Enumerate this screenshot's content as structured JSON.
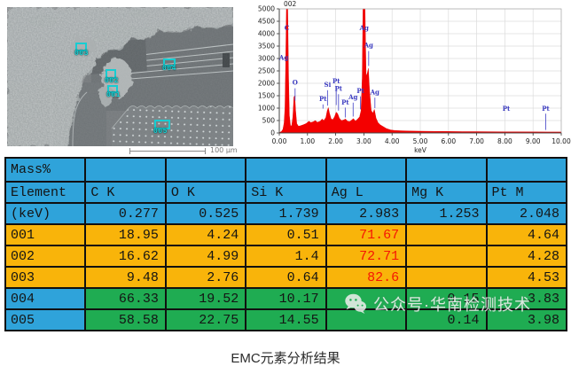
{
  "sem": {
    "scale_bar_label": "100 μm",
    "markers": [
      {
        "label": "003"
      },
      {
        "label": "004"
      },
      {
        "label": "002"
      },
      {
        "label": "001"
      },
      {
        "label": "005"
      }
    ]
  },
  "chart_data": {
    "type": "area",
    "title": "002",
    "xlabel": "keV",
    "ylabel": "",
    "xlim": [
      0,
      10
    ],
    "ylim": [
      0,
      5000
    ],
    "grid": true,
    "series_color": "#f40000",
    "label_color": "#3a3ac0",
    "x_ticks": [
      "0.00",
      "1.00",
      "2.00",
      "3.00",
      "4.00",
      "5.00",
      "6.00",
      "7.00",
      "8.00",
      "9.00",
      "10.00"
    ],
    "y_ticks": [
      0,
      500,
      1000,
      1500,
      2000,
      2500,
      3000,
      3500,
      4000,
      4500,
      5000
    ],
    "points": [
      [
        0,
        15
      ],
      [
        0.08,
        60
      ],
      [
        0.13,
        150
      ],
      [
        0.17,
        400
      ],
      [
        0.2,
        1000
      ],
      [
        0.23,
        3000
      ],
      [
        0.25,
        5300
      ],
      [
        0.3,
        5300
      ],
      [
        0.33,
        2200
      ],
      [
        0.36,
        700
      ],
      [
        0.4,
        280
      ],
      [
        0.44,
        300
      ],
      [
        0.48,
        650
      ],
      [
        0.52,
        1450
      ],
      [
        0.55,
        1500
      ],
      [
        0.58,
        900
      ],
      [
        0.62,
        380
      ],
      [
        0.68,
        270
      ],
      [
        0.75,
        290
      ],
      [
        0.85,
        330
      ],
      [
        0.95,
        380
      ],
      [
        1.05,
        470
      ],
      [
        1.12,
        420
      ],
      [
        1.2,
        450
      ],
      [
        1.28,
        500
      ],
      [
        1.35,
        430
      ],
      [
        1.45,
        470
      ],
      [
        1.52,
        560
      ],
      [
        1.58,
        500
      ],
      [
        1.65,
        620
      ],
      [
        1.7,
        900
      ],
      [
        1.74,
        1020
      ],
      [
        1.78,
        800
      ],
      [
        1.84,
        560
      ],
      [
        1.9,
        540
      ],
      [
        1.96,
        650
      ],
      [
        2.02,
        840
      ],
      [
        2.07,
        780
      ],
      [
        2.13,
        600
      ],
      [
        2.2,
        500
      ],
      [
        2.28,
        520
      ],
      [
        2.35,
        560
      ],
      [
        2.42,
        470
      ],
      [
        2.5,
        460
      ],
      [
        2.57,
        520
      ],
      [
        2.63,
        580
      ],
      [
        2.7,
        480
      ],
      [
        2.78,
        560
      ],
      [
        2.85,
        650
      ],
      [
        2.9,
        900
      ],
      [
        2.94,
        2200
      ],
      [
        2.97,
        5300
      ],
      [
        3.04,
        5300
      ],
      [
        3.08,
        2300
      ],
      [
        3.12,
        2400
      ],
      [
        3.16,
        2600
      ],
      [
        3.2,
        1700
      ],
      [
        3.26,
        900
      ],
      [
        3.32,
        800
      ],
      [
        3.37,
        950
      ],
      [
        3.43,
        600
      ],
      [
        3.5,
        420
      ],
      [
        3.58,
        330
      ],
      [
        3.68,
        260
      ],
      [
        3.8,
        180
      ],
      [
        3.95,
        120
      ],
      [
        4.1,
        100
      ],
      [
        4.3,
        90
      ],
      [
        4.6,
        80
      ],
      [
        5,
        70
      ],
      [
        5.5,
        65
      ],
      [
        6,
        60
      ],
      [
        6.5,
        55
      ],
      [
        7,
        52
      ],
      [
        7.5,
        50
      ],
      [
        8,
        48
      ],
      [
        8.5,
        45
      ],
      [
        9,
        42
      ],
      [
        9.5,
        40
      ],
      [
        10,
        38
      ]
    ],
    "peak_labels": [
      {
        "el": "C",
        "x": 0.27,
        "y": 4150
      },
      {
        "el": "Ag",
        "x": 0.16,
        "y": 2950
      },
      {
        "el": "O",
        "x": 0.56,
        "y": 1950,
        "line": [
          1300,
          1800
        ]
      },
      {
        "el": "Pt",
        "x": 1.55,
        "y": 1280,
        "line": [
          980,
          1150
        ]
      },
      {
        "el": "Si",
        "x": 1.71,
        "y": 1850,
        "line": [
          1100,
          1720
        ]
      },
      {
        "el": "Pt",
        "x": 2.02,
        "y": 2000,
        "line": [
          1120,
          1870
        ]
      },
      {
        "el": "Pt",
        "x": 2.1,
        "y": 1700,
        "line": [
          900,
          1560
        ]
      },
      {
        "el": "Pt",
        "x": 2.34,
        "y": 1150,
        "line": [
          620,
          1020
        ]
      },
      {
        "el": "Ag",
        "x": 2.62,
        "y": 1350,
        "line": [
          660,
          1220
        ]
      },
      {
        "el": "Pt",
        "x": 2.88,
        "y": 1600,
        "line": [
          950,
          1470
        ]
      },
      {
        "el": "Ag",
        "x": 3.01,
        "y": 4150
      },
      {
        "el": "Ag",
        "x": 3.17,
        "y": 3450,
        "line": [
          2700,
          3300
        ]
      },
      {
        "el": "Ag",
        "x": 3.39,
        "y": 1550,
        "line": [
          1000,
          1420
        ]
      },
      {
        "el": "Pt",
        "x": 8.05,
        "y": 900
      },
      {
        "el": "Pt",
        "x": 9.45,
        "y": 900,
        "line": [
          120,
          780
        ]
      }
    ]
  },
  "table": {
    "header_title": "Mass%",
    "columns": [
      "Element",
      "C K",
      "O K",
      "Si K",
      "Ag L",
      "Mg K",
      "Pt M"
    ],
    "kev_row": {
      "label": "(keV)",
      "values": [
        "0.277",
        "0.525",
        "1.739",
        "2.983",
        "1.253",
        "2.048"
      ]
    },
    "rows": [
      {
        "label": "001",
        "style": "orange",
        "label_style": "orange",
        "values": [
          "18.95",
          "4.24",
          "0.51",
          "71.67",
          "",
          "4.64"
        ],
        "red_cols": [
          3
        ]
      },
      {
        "label": "002",
        "style": "orange",
        "label_style": "orange",
        "values": [
          "16.62",
          "4.99",
          "1.4",
          "72.71",
          "",
          "4.28"
        ],
        "red_cols": [
          3
        ]
      },
      {
        "label": "003",
        "style": "orange",
        "label_style": "orange",
        "values": [
          "9.48",
          "2.76",
          "0.64",
          "82.6",
          "",
          "4.53"
        ],
        "red_cols": [
          3
        ]
      },
      {
        "label": "004",
        "style": "green",
        "label_style": "blue",
        "values": [
          "66.33",
          "19.52",
          "10.17",
          "",
          "0.15",
          "3.83"
        ],
        "red_cols": []
      },
      {
        "label": "005",
        "style": "green",
        "label_style": "blue",
        "values": [
          "58.58",
          "22.75",
          "14.55",
          "",
          "0.14",
          "3.98"
        ],
        "red_cols": []
      }
    ],
    "colors": {
      "blue": "#2fa3da",
      "orange": "#f9b40a",
      "green": "#1fac52",
      "red_text": "#f51505"
    }
  },
  "watermark": {
    "icon": "wechat-icon",
    "text": "公众号·华南检测技术"
  },
  "caption": "EMC元素分析结果"
}
